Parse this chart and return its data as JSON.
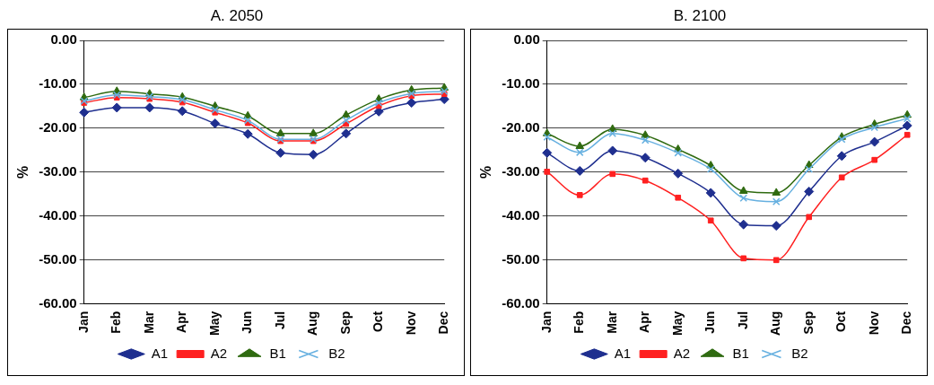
{
  "chart_data": [
    {
      "type": "line",
      "title": "A. 2050",
      "ylabel": "%",
      "categories": [
        "Jan",
        "Feb",
        "Mar",
        "Apr",
        "May",
        "Jun",
        "Jul",
        "Aug",
        "Sep",
        "Oct",
        "Nov",
        "Dec"
      ],
      "ylim": [
        -60,
        0
      ],
      "yticks": [
        {
          "value": -60,
          "label": "-60.00"
        },
        {
          "value": -50,
          "label": "-50.00"
        },
        {
          "value": -40,
          "label": "-40.00"
        },
        {
          "value": -30,
          "label": "-30.00"
        },
        {
          "value": -20,
          "label": "-20.00"
        },
        {
          "value": -10,
          "label": "-10.00"
        },
        {
          "value": 0,
          "label": "0.00"
        }
      ],
      "grid": "y",
      "legend": "bottom",
      "series": [
        {
          "name": "A1",
          "color": "#1f2f8f",
          "marker": "diamond",
          "values": [
            -16.4,
            -15.3,
            -15.3,
            -16.1,
            -18.9,
            -21.3,
            -25.6,
            -26.0,
            -21.2,
            -16.2,
            -14.2,
            -13.4
          ]
        },
        {
          "name": "A2",
          "color": "#ff2020",
          "marker": "square",
          "values": [
            -14.2,
            -13.0,
            -13.3,
            -14.1,
            -16.4,
            -18.8,
            -22.9,
            -22.9,
            -19.0,
            -14.9,
            -12.6,
            -12.2
          ]
        },
        {
          "name": "B1",
          "color": "#2f6a10",
          "marker": "triangle",
          "values": [
            -13.0,
            -11.6,
            -12.2,
            -12.9,
            -15.0,
            -17.2,
            -21.2,
            -21.2,
            -17.0,
            -13.4,
            -11.3,
            -10.8
          ]
        },
        {
          "name": "B2",
          "color": "#66b0e0",
          "marker": "cross",
          "values": [
            -13.8,
            -12.4,
            -12.8,
            -13.5,
            -15.8,
            -18.2,
            -22.5,
            -22.5,
            -18.2,
            -14.2,
            -12.1,
            -11.6
          ]
        }
      ]
    },
    {
      "type": "line",
      "title": "B. 2100",
      "ylabel": "%",
      "categories": [
        "Jan",
        "Feb",
        "Mar",
        "Apr",
        "May",
        "Jun",
        "Jul",
        "Aug",
        "Sep",
        "Oct",
        "Nov",
        "Dec"
      ],
      "ylim": [
        -60,
        0
      ],
      "yticks": [
        {
          "value": -60,
          "label": "-60.00"
        },
        {
          "value": -50,
          "label": "-50.00"
        },
        {
          "value": -40,
          "label": "-40.00"
        },
        {
          "value": -30,
          "label": "-30.00"
        },
        {
          "value": -20,
          "label": "-20.00"
        },
        {
          "value": -10,
          "label": "-10.00"
        },
        {
          "value": 0,
          "label": "0.00"
        }
      ],
      "grid": "y",
      "legend": "bottom",
      "series": [
        {
          "name": "A1",
          "color": "#1f2f8f",
          "marker": "diamond",
          "values": [
            -25.6,
            -29.7,
            -25.1,
            -26.7,
            -30.3,
            -34.7,
            -41.9,
            -42.2,
            -34.4,
            -26.3,
            -23.1,
            -19.4
          ]
        },
        {
          "name": "A2",
          "color": "#ff2020",
          "marker": "square",
          "values": [
            -29.9,
            -35.2,
            -30.4,
            -31.9,
            -35.8,
            -41.0,
            -49.6,
            -50.0,
            -40.2,
            -31.2,
            -27.2,
            -21.5
          ]
        },
        {
          "name": "B1",
          "color": "#2f6a10",
          "marker": "triangle",
          "values": [
            -21.2,
            -24.1,
            -20.2,
            -21.6,
            -24.8,
            -28.5,
            -34.3,
            -34.7,
            -28.4,
            -22.0,
            -19.1,
            -17.0
          ]
        },
        {
          "name": "B2",
          "color": "#66b0e0",
          "marker": "cross",
          "values": [
            -22.0,
            -25.5,
            -21.2,
            -22.7,
            -25.6,
            -29.3,
            -35.9,
            -36.7,
            -29.3,
            -22.5,
            -19.8,
            -17.8
          ]
        }
      ]
    }
  ]
}
